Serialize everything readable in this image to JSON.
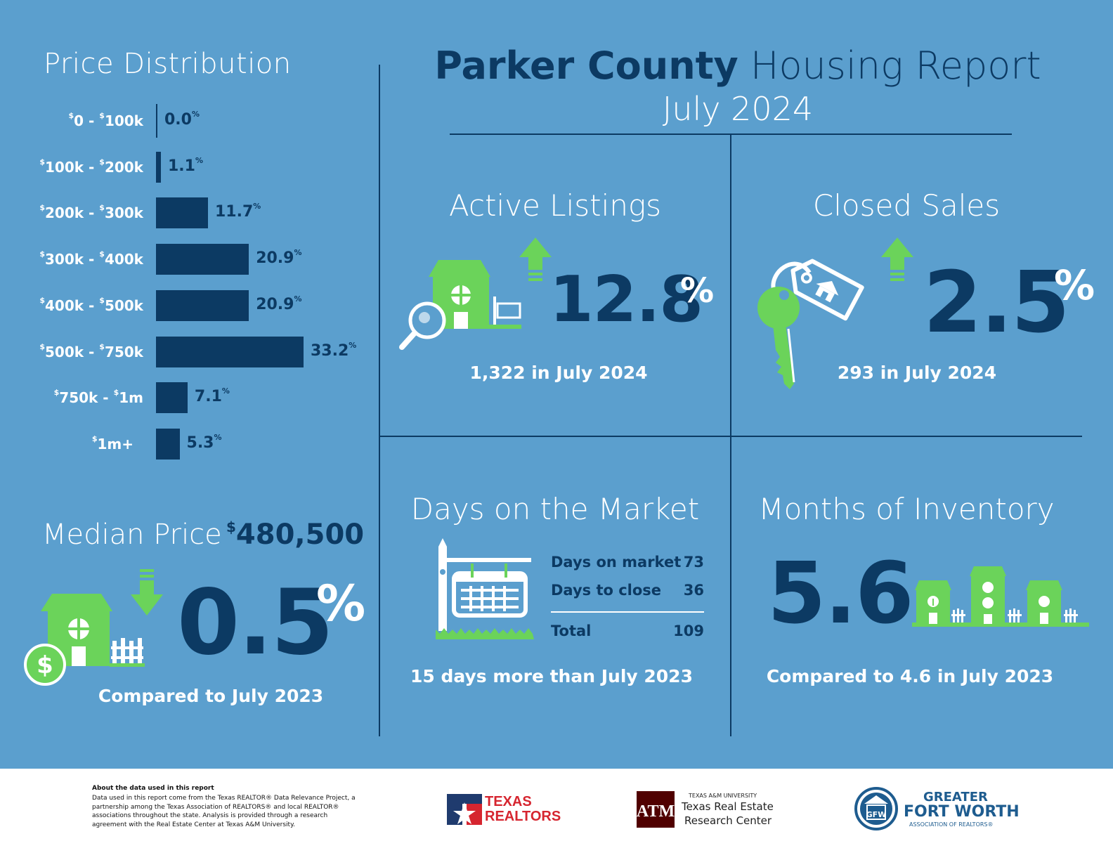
{
  "header": {
    "title_bold": "Parker County",
    "title_light": "Housing Report",
    "date": "July 2024"
  },
  "price_distribution": {
    "title": "Price Distribution"
  },
  "chart_data": {
    "type": "bar",
    "orientation": "horizontal",
    "title": "Price Distribution",
    "categories": [
      {
        "currency_a": "$",
        "a": "0 - ",
        "currency_b": "$",
        "b": "100k"
      },
      {
        "currency_a": "$",
        "a": "100k - ",
        "currency_b": "$",
        "b": "200k"
      },
      {
        "currency_a": "$",
        "a": "200k - ",
        "currency_b": "$",
        "b": "300k"
      },
      {
        "currency_a": "$",
        "a": "300k - ",
        "currency_b": "$",
        "b": "400k"
      },
      {
        "currency_a": "$",
        "a": "400k - ",
        "currency_b": "$",
        "b": "500k"
      },
      {
        "currency_a": "$",
        "a": "500k - ",
        "currency_b": "$",
        "b": "750k"
      },
      {
        "currency_a": "$",
        "a": "750k - ",
        "currency_b": "$",
        "b": "1m"
      },
      {
        "currency_a": "$",
        "a": "1m+",
        "currency_b": "",
        "b": ""
      }
    ],
    "values": [
      0.0,
      1.1,
      11.7,
      20.9,
      20.9,
      33.2,
      7.1,
      5.3
    ],
    "value_labels": [
      "0.0",
      "1.1",
      "11.7",
      "20.9",
      "20.9",
      "33.2",
      "7.1",
      "5.3"
    ],
    "unit": "%",
    "xlim": [
      0,
      33.2
    ]
  },
  "median": {
    "label": "Median Price",
    "currency": "$",
    "price": "480,500",
    "change": "0.5",
    "pct": "%",
    "direction": "down",
    "sub": "Compared to July 2023"
  },
  "active_listings": {
    "title": "Active Listings",
    "change": "12.8",
    "pct": "%",
    "direction": "up",
    "sub": "1,322 in July 2024"
  },
  "closed_sales": {
    "title": "Closed Sales",
    "change": "2.5",
    "pct": "%",
    "direction": "up",
    "sub": "293 in July 2024"
  },
  "days_on_market": {
    "title": "Days on the Market",
    "rows": [
      {
        "label": "Days on market",
        "value": "73"
      },
      {
        "label": "Days to close",
        "value": "36"
      }
    ],
    "total_label": "Total",
    "total_value": "109",
    "sub": "15 days more than July 2023"
  },
  "months_inventory": {
    "title": "Months of Inventory",
    "value": "5.6",
    "sub": "Compared to 4.6 in July 2023"
  },
  "footer": {
    "about_title": "About the data used in this report",
    "about_text": "Data used in this report come from the Texas REALTOR® Data Relevance Project, a partnership among the Texas Association of REALTORS® and local REALTOR® associations throughout the state. Analysis is provided through a research agreement with the Real Estate Center at Texas A&M University.",
    "texas_realtors_line1": "TEXAS",
    "texas_realtors_line2": "REALTORS",
    "tamu_small": "TEXAS A&M UNIVERSITY",
    "tamu_line1": "Texas Real Estate",
    "tamu_line2": "Research Center",
    "gfw_line1": "GREATER",
    "gfw_line2": "FORT WORTH",
    "gfw_line3": "ASSOCIATION OF REALTORS®"
  },
  "colors": {
    "background": "#5b9fce",
    "navy": "#0c3a63",
    "green": "#6bd35a",
    "white": "#ffffff"
  }
}
